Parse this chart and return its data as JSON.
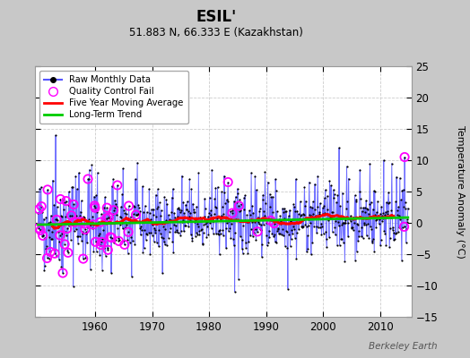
{
  "title": "ESIL'",
  "subtitle": "51.883 N, 66.333 E (Kazakhstan)",
  "ylabel": "Temperature Anomaly (°C)",
  "watermark": "Berkeley Earth",
  "year_start": 1950,
  "year_end": 2014,
  "ylim": [
    -15,
    25
  ],
  "yticks": [
    -15,
    -10,
    -5,
    0,
    5,
    10,
    15,
    20,
    25
  ],
  "xticks": [
    1960,
    1970,
    1980,
    1990,
    2000,
    2010
  ],
  "fig_bg_color": "#c8c8c8",
  "plot_bg_color": "#ffffff",
  "raw_line_color": "#5555ff",
  "raw_dot_color": "#000000",
  "qc_fail_color": "#ff00ff",
  "moving_avg_color": "#ff0000",
  "trend_color": "#00cc00",
  "legend_labels": [
    "Raw Monthly Data",
    "Quality Control Fail",
    "Five Year Moving Average",
    "Long-Term Trend"
  ]
}
